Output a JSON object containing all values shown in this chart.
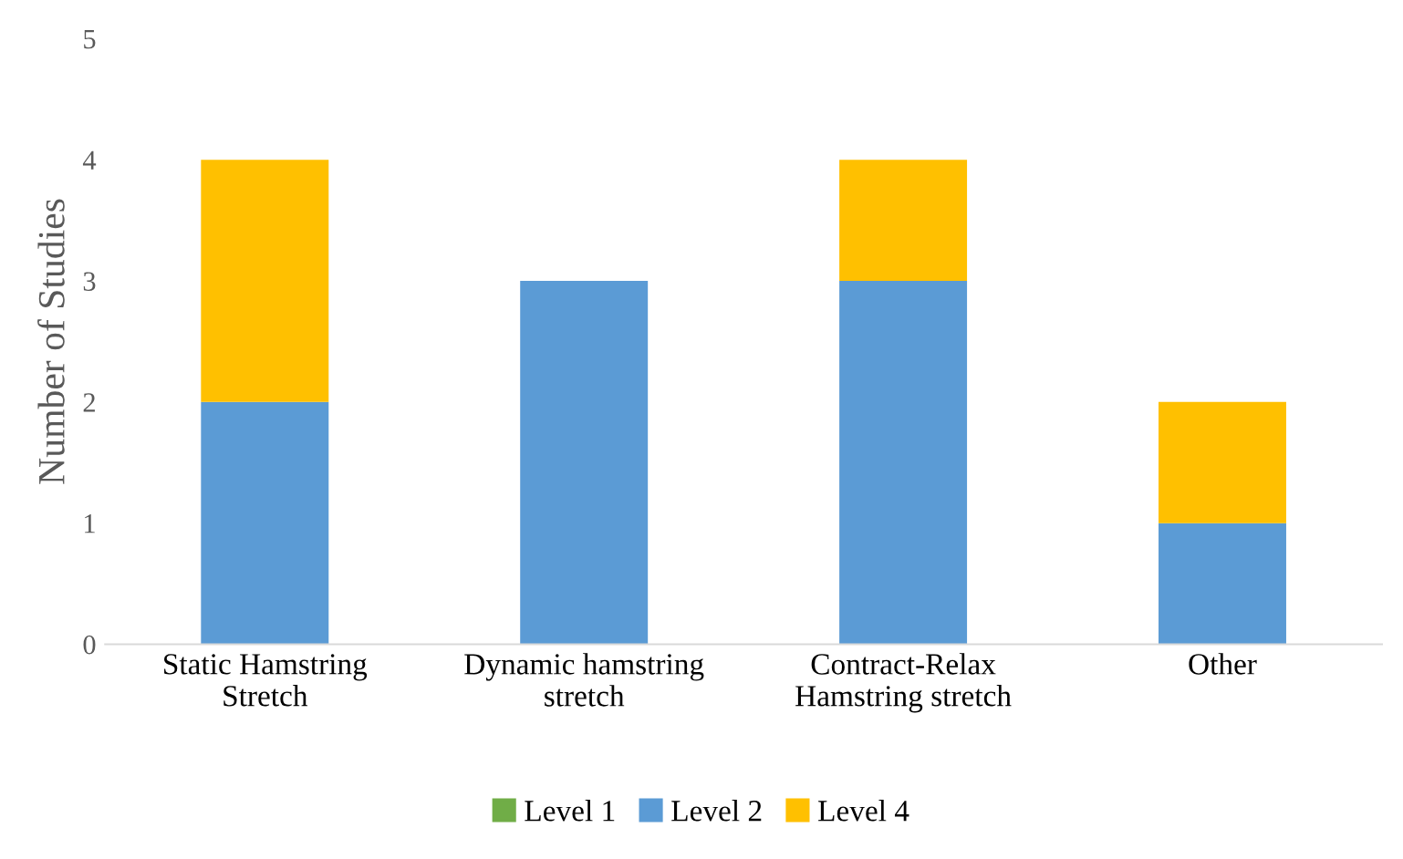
{
  "chart_data": {
    "type": "bar",
    "stacked": true,
    "ylabel": "Number of Studies",
    "categories": [
      "Static Hamstring\nStretch",
      "Dynamic hamstring\nstretch",
      "Contract-Relax\nHamstring stretch",
      "Other"
    ],
    "series": [
      {
        "name": "Level 1",
        "color": "#70ad47",
        "values": [
          0,
          0,
          0,
          0
        ]
      },
      {
        "name": "Level 2",
        "color": "#5b9bd5",
        "values": [
          2,
          3,
          3,
          1
        ]
      },
      {
        "name": "Level 4",
        "color": "#ffc000",
        "values": [
          2,
          0,
          1,
          1
        ]
      }
    ],
    "ylim": [
      0,
      5
    ],
    "yticks": [
      0,
      1,
      2,
      3,
      4,
      5
    ],
    "grid": false,
    "legend": "bottom"
  }
}
